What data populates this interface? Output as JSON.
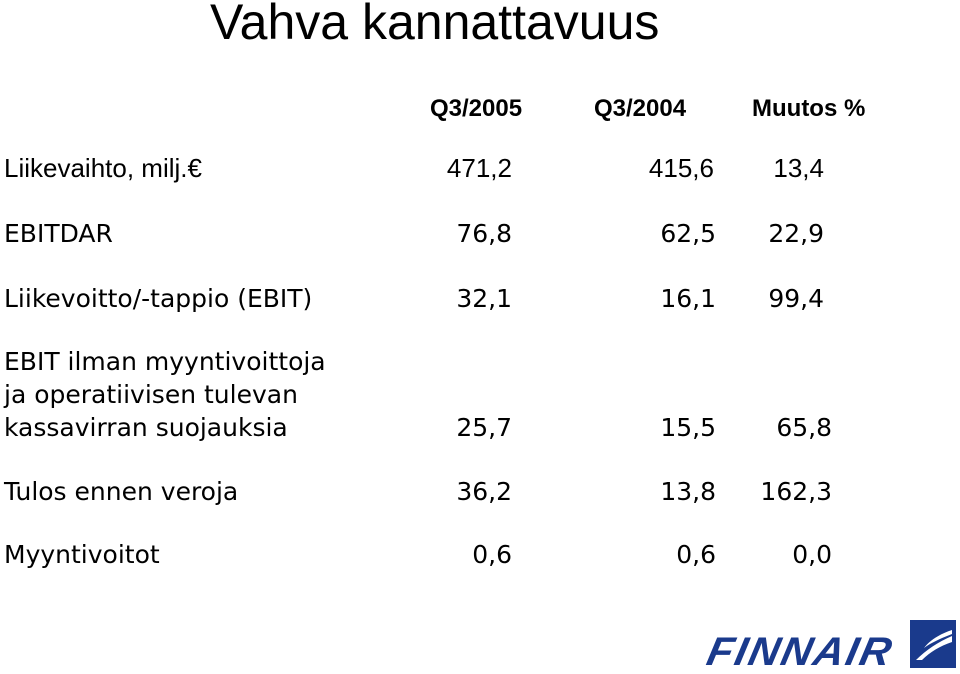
{
  "title": "Vahva kannattavuus",
  "columns": [
    "Q3/2005",
    "Q3/2004",
    "Muutos %"
  ],
  "rows": [
    {
      "label": "Liikevaihto, milj.€",
      "q3_2005": "471,2",
      "q3_2004": "415,6",
      "change": "13,4"
    },
    {
      "label": "EBITDAR",
      "q3_2005": "76,8",
      "q3_2004": "62,5",
      "change": "22,9"
    },
    {
      "label": "Liikevoitto/-tappio (EBIT)",
      "q3_2005": "32,1",
      "q3_2004": "16,1",
      "change": "99,4"
    },
    {
      "label_lines": [
        "EBIT ilman myyntivoittoja",
        "ja operatiivisen tulevan",
        "kassavirran suojauksia"
      ],
      "q3_2005": "25,7",
      "q3_2004": "15,5",
      "change": "65,8"
    },
    {
      "label": "Tulos ennen veroja",
      "q3_2005": "36,2",
      "q3_2004": "13,8",
      "change": "162,3"
    },
    {
      "label": "Myyntivoitot",
      "q3_2005": "0,6",
      "q3_2004": "0,6",
      "change": "0,0"
    }
  ],
  "logo": {
    "text": "FINNAIR",
    "color": "#1a3a8c"
  }
}
